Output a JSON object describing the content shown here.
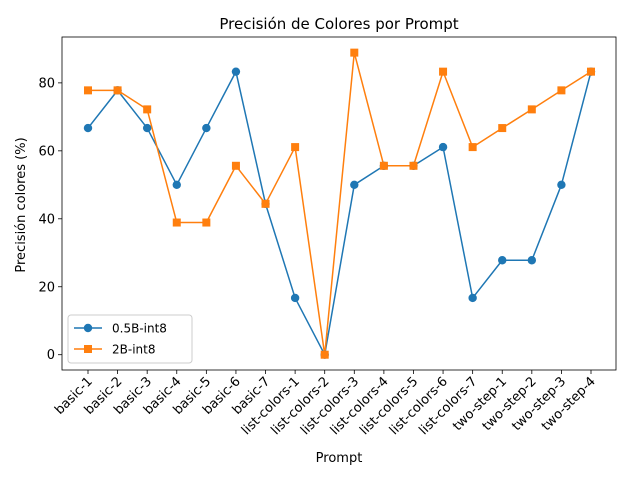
{
  "chart_data": {
    "type": "line",
    "title": "Precisión de Colores por Prompt",
    "xlabel": "Prompt",
    "ylabel": "Precisión colores (%)",
    "categories": [
      "basic-1",
      "basic-2",
      "basic-3",
      "basic-4",
      "basic-5",
      "basic-6",
      "basic-7",
      "list-colors-1",
      "list-colors-2",
      "list-colors-3",
      "list-colors-4",
      "list-colors-5",
      "list-colors-6",
      "list-colors-7",
      "two-step-1",
      "two-step-2",
      "two-step-3",
      "two-step-4"
    ],
    "ylim": [
      -4.5,
      93.5
    ],
    "yticks": [
      0,
      20,
      40,
      60,
      80
    ],
    "grid": false,
    "legend_position": "lower-left",
    "series": [
      {
        "name": "0.5B-int8",
        "color": "#1f77b4",
        "marker": "circle",
        "values": [
          66.7,
          77.8,
          66.7,
          50.0,
          66.7,
          83.3,
          44.4,
          16.7,
          0.0,
          50.0,
          55.6,
          55.6,
          61.1,
          16.7,
          27.8,
          27.8,
          50.0,
          83.3
        ]
      },
      {
        "name": "2B-int8",
        "color": "#ff7f0e",
        "marker": "square",
        "values": [
          77.8,
          77.8,
          72.2,
          38.9,
          38.9,
          55.6,
          44.4,
          61.1,
          0.0,
          88.9,
          55.6,
          55.6,
          83.3,
          61.1,
          66.7,
          72.2,
          77.8,
          83.3
        ]
      }
    ]
  }
}
